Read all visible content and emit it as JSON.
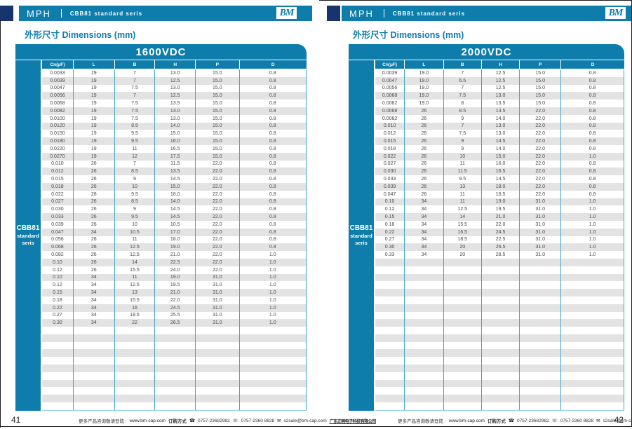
{
  "pages": [
    {
      "header": {
        "brand": "MPH",
        "series": "CBB81 standard seris",
        "logo": "BM"
      },
      "section_title": "外形尺寸 Dimensions (mm)",
      "table": {
        "voltage": "1600VDC",
        "sidebar": {
          "line1": "CBB81",
          "line2": "standard",
          "line3": "seris"
        },
        "columns": [
          "Cn(μF)",
          "L",
          "B",
          "H",
          "P",
          "D"
        ],
        "rows": [
          [
            "0.0033",
            "19",
            "7",
            "13.0",
            "15.0",
            "0.8"
          ],
          [
            "0.0039",
            "19",
            "7",
            "12.5",
            "15.0",
            "0.8"
          ],
          [
            "0.0047",
            "19",
            "7.5",
            "13.0",
            "15.0",
            "0.8"
          ],
          [
            "0.0056",
            "19",
            "7",
            "12.5",
            "15.0",
            "0.8"
          ],
          [
            "0.0068",
            "19",
            "7.5",
            "13.5",
            "15.0",
            "0.8"
          ],
          [
            "0.0082",
            "19",
            "7.5",
            "13.0",
            "15.0",
            "0.8"
          ],
          [
            "0.0100",
            "19",
            "7.5",
            "13.0",
            "15.0",
            "0.8"
          ],
          [
            "0.0120",
            "19",
            "8.5",
            "14.0",
            "15.0",
            "0.8"
          ],
          [
            "0.0150",
            "19",
            "9.5",
            "15.0",
            "15.0",
            "0.8"
          ],
          [
            "0.0180",
            "19",
            "9.5",
            "16.0",
            "15.0",
            "0.8"
          ],
          [
            "0.0220",
            "19",
            "11",
            "16.5",
            "15.0",
            "0.8"
          ],
          [
            "0.0270",
            "19",
            "12",
            "17.5",
            "15.0",
            "0.8"
          ],
          [
            "0.010",
            "26",
            "7",
            "11.5",
            "22.0",
            "0.8"
          ],
          [
            "0.012",
            "26",
            "8.5",
            "13.5",
            "22.0",
            "0.8"
          ],
          [
            "0.015",
            "26",
            "9",
            "14.5",
            "22.0",
            "0.8"
          ],
          [
            "0.018",
            "26",
            "10",
            "15.0",
            "22.0",
            "0.8"
          ],
          [
            "0.022",
            "26",
            "9.5",
            "18.0",
            "22.0",
            "0.8"
          ],
          [
            "0.027",
            "26",
            "8.5",
            "14.0",
            "22.0",
            "0.8"
          ],
          [
            "0.030",
            "26",
            "9",
            "14.5",
            "22.0",
            "0.8"
          ],
          [
            "0.033",
            "26",
            "9.5",
            "14.5",
            "22.0",
            "0.8"
          ],
          [
            "0.039",
            "26",
            "10",
            "10.5",
            "22.0",
            "0.8"
          ],
          [
            "0.047",
            "34",
            "10.5",
            "17.0",
            "22.0",
            "0.8"
          ],
          [
            "0.056",
            "26",
            "11",
            "18.0",
            "22.0",
            "0.8"
          ],
          [
            "0.068",
            "26",
            "12.5",
            "19.0",
            "22.0",
            "0.8"
          ],
          [
            "0.082",
            "26",
            "12.5",
            "21.0",
            "22.0",
            "1.0"
          ],
          [
            "0.10",
            "26",
            "14",
            "22.5",
            "22.0",
            "1.0"
          ],
          [
            "0.12",
            "26",
            "15.5",
            "24.0",
            "22.0",
            "1.0"
          ],
          [
            "0.10",
            "34",
            "11",
            "19.0",
            "31.0",
            "1.0"
          ],
          [
            "0.12",
            "34",
            "12.5",
            "19.5",
            "31.0",
            "1.0"
          ],
          [
            "0.15",
            "34",
            "13",
            "21.0",
            "31.0",
            "1.0"
          ],
          [
            "0.18",
            "34",
            "15.5",
            "22.0",
            "31.0",
            "1.0"
          ],
          [
            "0.22",
            "34",
            "16",
            "24.5",
            "31.0",
            "1.0"
          ],
          [
            "0.27",
            "34",
            "18.5",
            "25.5",
            "31.0",
            "1.0"
          ],
          [
            "0.30",
            "34",
            "22",
            "26.5",
            "31.0",
            "1.0"
          ]
        ],
        "empty_rows": 11
      },
      "page_number": "41"
    },
    {
      "header": {
        "brand": "MPH",
        "series": "CBB81  standard  seris",
        "logo": "BM"
      },
      "section_title": "外形尺寸 Dimensions (mm)",
      "table": {
        "voltage": "2000VDC",
        "sidebar": {
          "line1": "CBB81",
          "line2": "standard",
          "line3": "seris"
        },
        "columns": [
          "Cn(μF)",
          "L",
          "B",
          "H",
          "P",
          "D"
        ],
        "rows": [
          [
            "0.0039",
            "19.0",
            "7",
            "12.5",
            "15.0",
            "0.8"
          ],
          [
            "0.0047",
            "19.0",
            "6.5",
            "12.5",
            "15.0",
            "0.8"
          ],
          [
            "0.0056",
            "19.0",
            "7",
            "12.5",
            "15.0",
            "0.8"
          ],
          [
            "0.0068",
            "19.0",
            "7.5",
            "13.0",
            "15.0",
            "0.8"
          ],
          [
            "0.0082",
            "19.0",
            "8",
            "13.5",
            "15.0",
            "0.8"
          ],
          [
            "0.0068",
            "26",
            "8.5",
            "13.5",
            "22.0",
            "0.8"
          ],
          [
            "0.0082",
            "26",
            "9",
            "14.0",
            "22.0",
            "0.8"
          ],
          [
            "0.010",
            "26",
            "7",
            "13.0",
            "22.0",
            "0.8"
          ],
          [
            "0.012",
            "26",
            "7.5",
            "13.0",
            "22.0",
            "0.8"
          ],
          [
            "0.015",
            "26",
            "9",
            "14.5",
            "22.0",
            "0.8"
          ],
          [
            "0.018",
            "26",
            "9",
            "14.0",
            "22.0",
            "0.8"
          ],
          [
            "0.022",
            "26",
            "10",
            "15.0",
            "22.0",
            "1.0"
          ],
          [
            "0.027",
            "26",
            "11",
            "16.0",
            "22.0",
            "0.8"
          ],
          [
            "0.030",
            "26",
            "11.5",
            "16.5",
            "22.0",
            "0.8"
          ],
          [
            "0.033",
            "26",
            "9.5",
            "14.5",
            "22.0",
            "0.8"
          ],
          [
            "0.039",
            "26",
            "13",
            "18.0",
            "22.0",
            "0.8"
          ],
          [
            "0.047",
            "26",
            "11",
            "16.5",
            "22.0",
            "0.8"
          ],
          [
            "0.10",
            "34",
            "11",
            "19.0",
            "31.0",
            "1.0"
          ],
          [
            "0.12",
            "34",
            "12.5",
            "19.5",
            "31.0",
            "1.0"
          ],
          [
            "0.15",
            "34",
            "14",
            "21.0",
            "31.0",
            "1.0"
          ],
          [
            "0.18",
            "34",
            "15.5",
            "22.0",
            "31.0",
            "1.0"
          ],
          [
            "0.22",
            "34",
            "16.5",
            "24.5",
            "31.0",
            "1.0"
          ],
          [
            "0.27",
            "34",
            "18.5",
            "22.5",
            "31.0",
            "1.0"
          ],
          [
            "0.30",
            "34",
            "20",
            "26.5",
            "31.0",
            "1.0"
          ],
          [
            "0.33",
            "34",
            "20",
            "28.5",
            "31.0",
            "1.0"
          ]
        ],
        "empty_rows": 20
      },
      "page_number": "42"
    }
  ],
  "footer": {
    "info_label": "更多产品咨询敬请登陆 :",
    "website": "www.bm-cap.com",
    "order_label": "订购方式",
    "phone": "0757-23682982",
    "fax": "0757-2360 8828",
    "email": "s2sale@bm-cap.com",
    "company": "广东正明电子科技有限公司"
  },
  "icons": {
    "phone": "☎",
    "fax": "☏",
    "email": "✉"
  },
  "colors": {
    "primary": "#0e7dac",
    "navy": "#16356d",
    "separator": "#3ba7d3",
    "stripe": "#e3e3e3"
  }
}
